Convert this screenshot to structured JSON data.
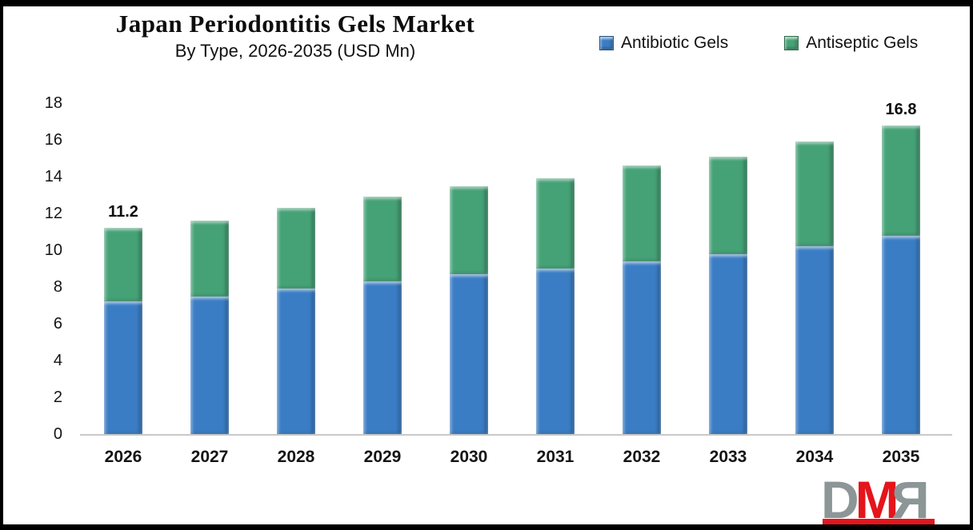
{
  "header": {
    "title": "Japan Periodontitis Gels Market",
    "subtitle": "By Type, 2026-2035 (USD Mn)"
  },
  "legend": [
    {
      "label": "Antibiotic Gels",
      "swatch_icon": "blue-square-icon",
      "color": "#3a7dc5"
    },
    {
      "label": "Antiseptic Gels",
      "swatch_icon": "green-square-icon",
      "color": "#45a276"
    }
  ],
  "colors": {
    "antibiotic_blue": "#3a7dc5",
    "antiseptic_green": "#45a276",
    "axis_line": "#c9c9c9",
    "text": "#141414",
    "logo_gray": "#8c9697",
    "logo_red": "#e4151b",
    "frame_border": "#000000"
  },
  "chart_data": {
    "type": "bar",
    "stacked": true,
    "title": "Japan Periodontitis Gels Market",
    "subtitle": "By Type, 2026-2035 (USD Mn)",
    "xlabel": "",
    "ylabel": "",
    "ylim": [
      0,
      18
    ],
    "ytick_step": 2,
    "ytick_labels": [
      "0",
      "2",
      "4",
      "6",
      "8",
      "10",
      "12",
      "14",
      "16",
      "18"
    ],
    "grid": false,
    "legend_position": "top-right",
    "categories": [
      "2026",
      "2027",
      "2028",
      "2029",
      "2030",
      "2031",
      "2032",
      "2033",
      "2034",
      "2035"
    ],
    "series": [
      {
        "name": "Antibiotic Gels",
        "color": "#3a7dc5",
        "values": [
          7.2,
          7.5,
          7.9,
          8.3,
          8.7,
          9.0,
          9.4,
          9.8,
          10.2,
          10.8
        ]
      },
      {
        "name": "Antiseptic Gels",
        "color": "#45a276",
        "values": [
          4.0,
          4.1,
          4.4,
          4.6,
          4.8,
          4.9,
          5.2,
          5.3,
          5.7,
          6.0
        ]
      }
    ],
    "totals": [
      11.2,
      11.6,
      12.3,
      12.9,
      13.5,
      13.9,
      14.6,
      15.1,
      15.9,
      16.8
    ],
    "data_labels": {
      "2026": "11.2",
      "2035": "16.8"
    }
  },
  "logo": {
    "letters": [
      {
        "char": "D",
        "color": "gray"
      },
      {
        "char": "M",
        "color": "red"
      },
      {
        "char": "R",
        "color": "gray"
      }
    ]
  }
}
